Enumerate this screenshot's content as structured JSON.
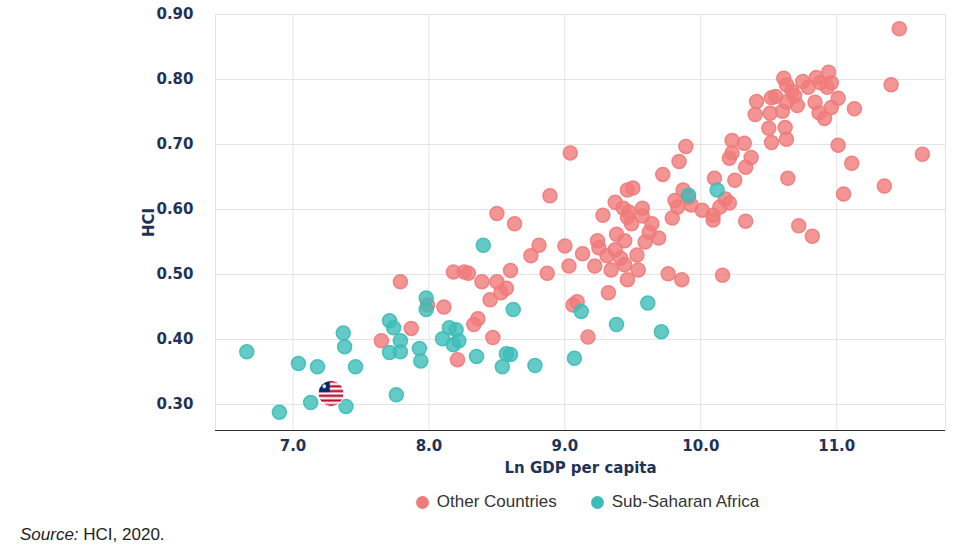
{
  "chart_data": {
    "type": "scatter",
    "x_label": "Ln GDP per capita",
    "y_label": "HCI",
    "source": "Source: HCI, 2020.",
    "xlim": [
      6.43,
      11.8
    ],
    "xticks": [
      7,
      8,
      9,
      10,
      11
    ],
    "ylim": [
      0.26,
      0.9
    ],
    "yticks": [
      0.3,
      0.4,
      0.5,
      0.6,
      0.7,
      0.8,
      0.9
    ],
    "grid": true,
    "legend": "bottom",
    "series": [
      {
        "name": "Other Countries",
        "color": "#f07b7b",
        "marker": "circle",
        "x": [
          7.65,
          7.79,
          7.87,
          7.99,
          8.11,
          8.18,
          8.21,
          8.26,
          8.29,
          8.33,
          8.36,
          8.39,
          8.45,
          8.47,
          8.5,
          8.5,
          8.53,
          8.57,
          8.6,
          8.63,
          8.75,
          8.81,
          8.87,
          8.89,
          9.0,
          9.03,
          9.04,
          9.06,
          9.09,
          9.13,
          9.17,
          9.22,
          9.24,
          9.25,
          9.28,
          9.31,
          9.32,
          9.34,
          9.37,
          9.37,
          9.38,
          9.41,
          9.43,
          9.44,
          9.44,
          9.46,
          9.46,
          9.46,
          9.47,
          9.49,
          9.5,
          9.53,
          9.54,
          9.57,
          9.57,
          9.59,
          9.62,
          9.64,
          9.69,
          9.72,
          9.76,
          9.79,
          9.81,
          9.83,
          9.84,
          9.86,
          9.87,
          9.89,
          9.91,
          9.93,
          10.01,
          10.09,
          10.09,
          10.1,
          10.14,
          10.16,
          10.18,
          10.21,
          10.21,
          10.23,
          10.23,
          10.25,
          10.32,
          10.33,
          10.33,
          10.37,
          10.4,
          10.41,
          10.5,
          10.51,
          10.52,
          10.52,
          10.55,
          10.6,
          10.61,
          10.62,
          10.63,
          10.63,
          10.63,
          10.64,
          10.67,
          10.69,
          10.71,
          10.72,
          10.75,
          10.79,
          10.82,
          10.84,
          10.85,
          10.87,
          10.88,
          10.91,
          10.93,
          10.94,
          10.96,
          10.96,
          11.01,
          11.01,
          11.05,
          11.11,
          11.13,
          11.35,
          11.4,
          11.46,
          11.63
        ],
        "values": [
          0.398,
          0.489,
          0.417,
          0.453,
          0.45,
          0.504,
          0.369,
          0.504,
          0.502,
          0.423,
          0.432,
          0.489,
          0.461,
          0.403,
          0.594,
          0.489,
          0.472,
          0.479,
          0.506,
          0.578,
          0.529,
          0.545,
          0.502,
          0.621,
          0.544,
          0.513,
          0.687,
          0.453,
          0.458,
          0.532,
          0.404,
          0.513,
          0.552,
          0.541,
          0.591,
          0.529,
          0.472,
          0.507,
          0.538,
          0.611,
          0.562,
          0.525,
          0.602,
          0.552,
          0.515,
          0.63,
          0.588,
          0.492,
          0.596,
          0.578,
          0.633,
          0.53,
          0.507,
          0.59,
          0.602,
          0.55,
          0.565,
          0.578,
          0.556,
          0.654,
          0.501,
          0.587,
          0.614,
          0.604,
          0.674,
          0.492,
          0.63,
          0.697,
          0.619,
          0.607,
          0.599,
          0.591,
          0.584,
          0.648,
          0.604,
          0.499,
          0.616,
          0.61,
          0.679,
          0.687,
          0.706,
          0.645,
          0.702,
          0.665,
          0.582,
          0.68,
          0.746,
          0.766,
          0.725,
          0.748,
          0.772,
          0.703,
          0.774,
          0.751,
          0.802,
          0.726,
          0.765,
          0.708,
          0.792,
          0.648,
          0.782,
          0.775,
          0.76,
          0.575,
          0.797,
          0.788,
          0.559,
          0.765,
          0.803,
          0.749,
          0.795,
          0.74,
          0.788,
          0.811,
          0.795,
          0.757,
          0.771,
          0.699,
          0.624,
          0.671,
          0.755,
          0.636,
          0.792,
          0.878,
          0.685
        ]
      },
      {
        "name": "Sub-Saharan Africa",
        "color": "#3dbdb8",
        "marker": "circle",
        "x": [
          6.66,
          6.9,
          7.04,
          7.13,
          7.18,
          7.37,
          7.38,
          7.39,
          7.46,
          7.71,
          7.71,
          7.74,
          7.76,
          7.79,
          7.79,
          7.93,
          7.94,
          7.98,
          7.98,
          8.1,
          8.15,
          8.18,
          8.2,
          8.22,
          8.35,
          8.4,
          8.54,
          8.57,
          8.62,
          8.6,
          8.78,
          9.07,
          9.12,
          9.38,
          9.61,
          9.71,
          9.91,
          10.12
        ],
        "values": [
          0.381,
          0.288,
          0.363,
          0.303,
          0.358,
          0.41,
          0.389,
          0.297,
          0.358,
          0.429,
          0.38,
          0.418,
          0.315,
          0.398,
          0.381,
          0.386,
          0.367,
          0.464,
          0.446,
          0.401,
          0.418,
          0.392,
          0.415,
          0.398,
          0.374,
          0.545,
          0.358,
          0.378,
          0.446,
          0.377,
          0.36,
          0.371,
          0.443,
          0.423,
          0.456,
          0.412,
          0.622,
          0.63
        ]
      },
      {
        "color": "#bf0a30",
        "marker": "flag",
        "x": [
          7.28
        ],
        "values": [
          0.317
        ]
      }
    ]
  }
}
